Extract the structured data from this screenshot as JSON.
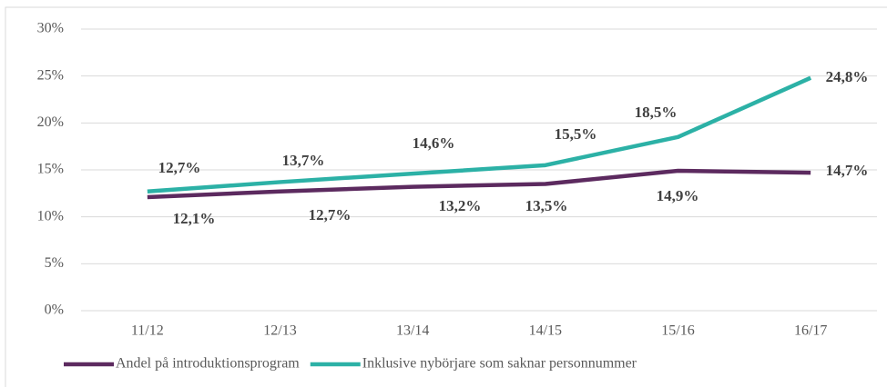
{
  "chart_data": {
    "type": "line",
    "categories": [
      "11/12",
      "12/13",
      "13/14",
      "14/15",
      "15/16",
      "16/17"
    ],
    "series": [
      {
        "name": "Andel på introduktionsprogram",
        "color": "#5c2a5f",
        "values": [
          12.1,
          12.7,
          13.2,
          13.5,
          14.9,
          14.7
        ],
        "value_labels": [
          "12,1%",
          "12,7%",
          "13,2%",
          "13,5%",
          "14,9%",
          "14,7%"
        ]
      },
      {
        "name": "Inklusive nybörjare som saknar personnummer",
        "color": "#2cb1a6",
        "values": [
          12.7,
          13.7,
          14.6,
          15.5,
          18.5,
          24.8
        ],
        "value_labels": [
          "12,7%",
          "13,7%",
          "14,6%",
          "15,5%",
          "18,5%",
          "24,8%"
        ]
      }
    ],
    "ylim": [
      0,
      30
    ],
    "yticks": [
      {
        "value": 0,
        "label": "0%"
      },
      {
        "value": 5,
        "label": "5%"
      },
      {
        "value": 10,
        "label": "10%"
      },
      {
        "value": 15,
        "label": "15%"
      },
      {
        "value": 20,
        "label": "20%"
      },
      {
        "value": 25,
        "label": "25%"
      },
      {
        "value": 30,
        "label": "30%"
      }
    ],
    "grid": true,
    "legend": "bottom"
  }
}
